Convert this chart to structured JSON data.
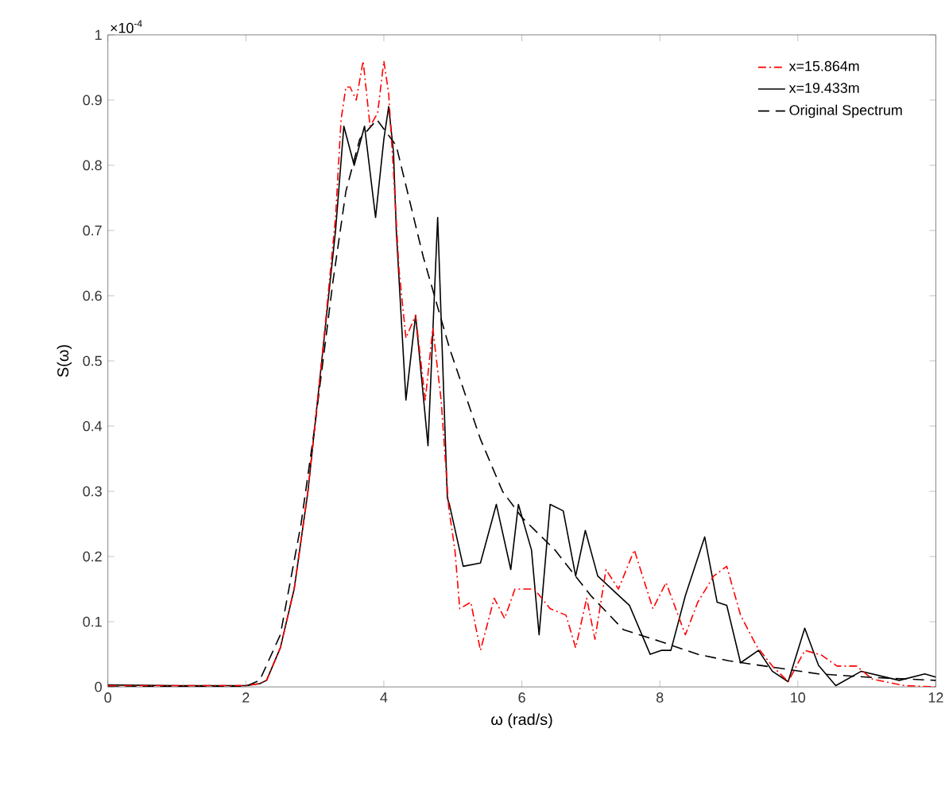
{
  "chart_data": {
    "type": "line",
    "xlabel": "ω (rad/s)",
    "ylabel": "S(ω)",
    "annotations": [
      "×10$^{-4}$"
    ],
    "xlim": [
      0,
      12
    ],
    "ylim": [
      0,
      1
    ],
    "xticks": [
      0,
      2,
      4,
      6,
      8,
      10,
      12
    ],
    "yticks": [
      0,
      0.1,
      0.2,
      0.3,
      0.4,
      0.5,
      0.6,
      0.7,
      0.8,
      0.9,
      1
    ],
    "grid": false,
    "legend": "top right",
    "series": [
      {
        "name": "x=15.864m",
        "color": "#ff0000",
        "line_style": "dashdot",
        "x": [
          0,
          1,
          2,
          2.2,
          2.3,
          2.5,
          2.7,
          2.9,
          3.1,
          3.3,
          3.38,
          3.45,
          3.51,
          3.6,
          3.7,
          3.8,
          3.91,
          4.0,
          4.07,
          4.14,
          4.22,
          4.32,
          4.46,
          4.6,
          4.71,
          4.83,
          4.94,
          5.03,
          5.1,
          5.26,
          5.4,
          5.6,
          5.75,
          5.9,
          6.18,
          6.41,
          6.64,
          6.78,
          6.94,
          7.06,
          7.22,
          7.4,
          7.63,
          7.9,
          8.09,
          8.37,
          8.55,
          8.78,
          8.97,
          9.17,
          9.4,
          9.63,
          9.86,
          10.1,
          10.34,
          10.57,
          10.85,
          11.08,
          11.54,
          12
        ],
        "values": [
          0.002,
          0.002,
          0.002,
          0.005,
          0.01,
          0.06,
          0.15,
          0.3,
          0.5,
          0.72,
          0.87,
          0.92,
          0.92,
          0.9,
          0.96,
          0.86,
          0.88,
          0.96,
          0.91,
          0.79,
          0.64,
          0.535,
          0.57,
          0.44,
          0.55,
          0.44,
          0.275,
          0.21,
          0.12,
          0.13,
          0.056,
          0.136,
          0.105,
          0.15,
          0.15,
          0.12,
          0.11,
          0.06,
          0.136,
          0.073,
          0.18,
          0.15,
          0.21,
          0.12,
          0.16,
          0.08,
          0.13,
          0.17,
          0.185,
          0.11,
          0.063,
          0.032,
          0.008,
          0.056,
          0.049,
          0.032,
          0.032,
          0.012,
          0.002,
          0
        ]
      },
      {
        "name": "x=19.433m",
        "color": "#000000",
        "line_style": "solid",
        "x": [
          0,
          1,
          2,
          2.2,
          2.3,
          2.5,
          2.7,
          2.9,
          3.1,
          3.3,
          3.42,
          3.57,
          3.72,
          3.88,
          4.0,
          4.07,
          4.14,
          4.18,
          4.32,
          4.46,
          4.64,
          4.78,
          4.92,
          4.95,
          5.15,
          5.4,
          5.63,
          5.84,
          5.95,
          6.14,
          6.25,
          6.41,
          6.6,
          6.78,
          6.92,
          7.1,
          7.56,
          7.86,
          8.02,
          8.16,
          8.37,
          8.65,
          8.83,
          8.97,
          9.17,
          9.43,
          9.63,
          9.86,
          10.1,
          10.3,
          10.55,
          10.92,
          11.47,
          11.84,
          12
        ],
        "values": [
          0.003,
          0.002,
          0.002,
          0.005,
          0.01,
          0.06,
          0.15,
          0.3,
          0.5,
          0.7,
          0.86,
          0.8,
          0.86,
          0.72,
          0.84,
          0.89,
          0.82,
          0.7,
          0.44,
          0.57,
          0.37,
          0.72,
          0.29,
          0.28,
          0.185,
          0.19,
          0.28,
          0.18,
          0.28,
          0.21,
          0.08,
          0.28,
          0.27,
          0.17,
          0.24,
          0.17,
          0.125,
          0.05,
          0.056,
          0.056,
          0.14,
          0.23,
          0.13,
          0.125,
          0.037,
          0.056,
          0.024,
          0.008,
          0.09,
          0.033,
          0.002,
          0.024,
          0.01,
          0.02,
          0.015
        ]
      },
      {
        "name": "Original Spectrum",
        "color": "#000000",
        "line_style": "dashed",
        "x": [
          0,
          2,
          2.2,
          2.5,
          2.8,
          3.0,
          3.26,
          3.45,
          3.65,
          3.9,
          4.18,
          4.57,
          4.95,
          5.4,
          5.72,
          6.0,
          6.48,
          7.0,
          7.47,
          8.0,
          8.55,
          9.0,
          10.3,
          11,
          12
        ],
        "values": [
          0,
          0.001,
          0.01,
          0.08,
          0.25,
          0.4,
          0.62,
          0.76,
          0.84,
          0.87,
          0.83,
          0.66,
          0.52,
          0.38,
          0.3,
          0.26,
          0.21,
          0.14,
          0.088,
          0.07,
          0.05,
          0.04,
          0.02,
          0.015,
          0.01
        ]
      }
    ]
  }
}
